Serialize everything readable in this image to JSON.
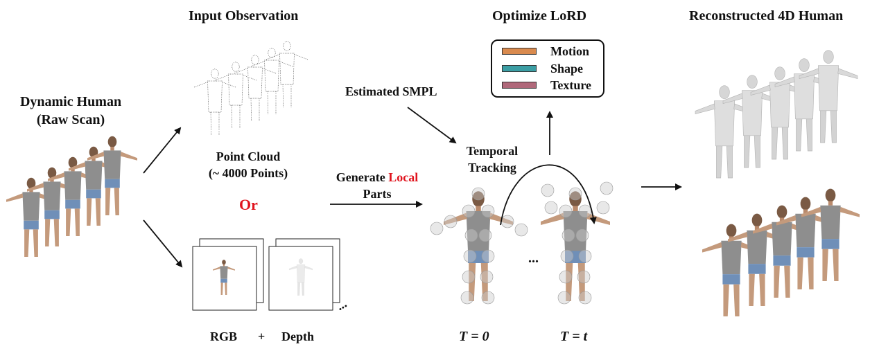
{
  "headings": {
    "input_observation": "Input Observation",
    "optimize_lord": "Optimize LoRD",
    "reconstructed": "Reconstructed 4D Human"
  },
  "dynamic_human": {
    "line1": "Dynamic Human",
    "line2": "(Raw Scan)"
  },
  "point_cloud": {
    "line1": "Point Cloud",
    "line2": "(~ 4000 Points)"
  },
  "or_label": "Or",
  "rgb_depth": {
    "rgb": "RGB",
    "plus": "+",
    "depth": "Depth",
    "ellipsis": "..."
  },
  "estimated_smpl": "Estimated SMPL",
  "temporal_tracking": {
    "line1": "Temporal",
    "line2": "Tracking"
  },
  "generate_local": {
    "prefix": "Generate ",
    "highlight": "Local",
    "line2": "Parts"
  },
  "legend": [
    {
      "label": "Motion",
      "color": "#d98a4e"
    },
    {
      "label": "Shape",
      "color": "#3b9ea4"
    },
    {
      "label": "Texture",
      "color": "#b0687a"
    }
  ],
  "time_labels": {
    "t0": "T = 0",
    "tt": "T = t",
    "dots": "..."
  },
  "colors": {
    "accent_red": "#e0141e",
    "arrow": "#111111"
  }
}
